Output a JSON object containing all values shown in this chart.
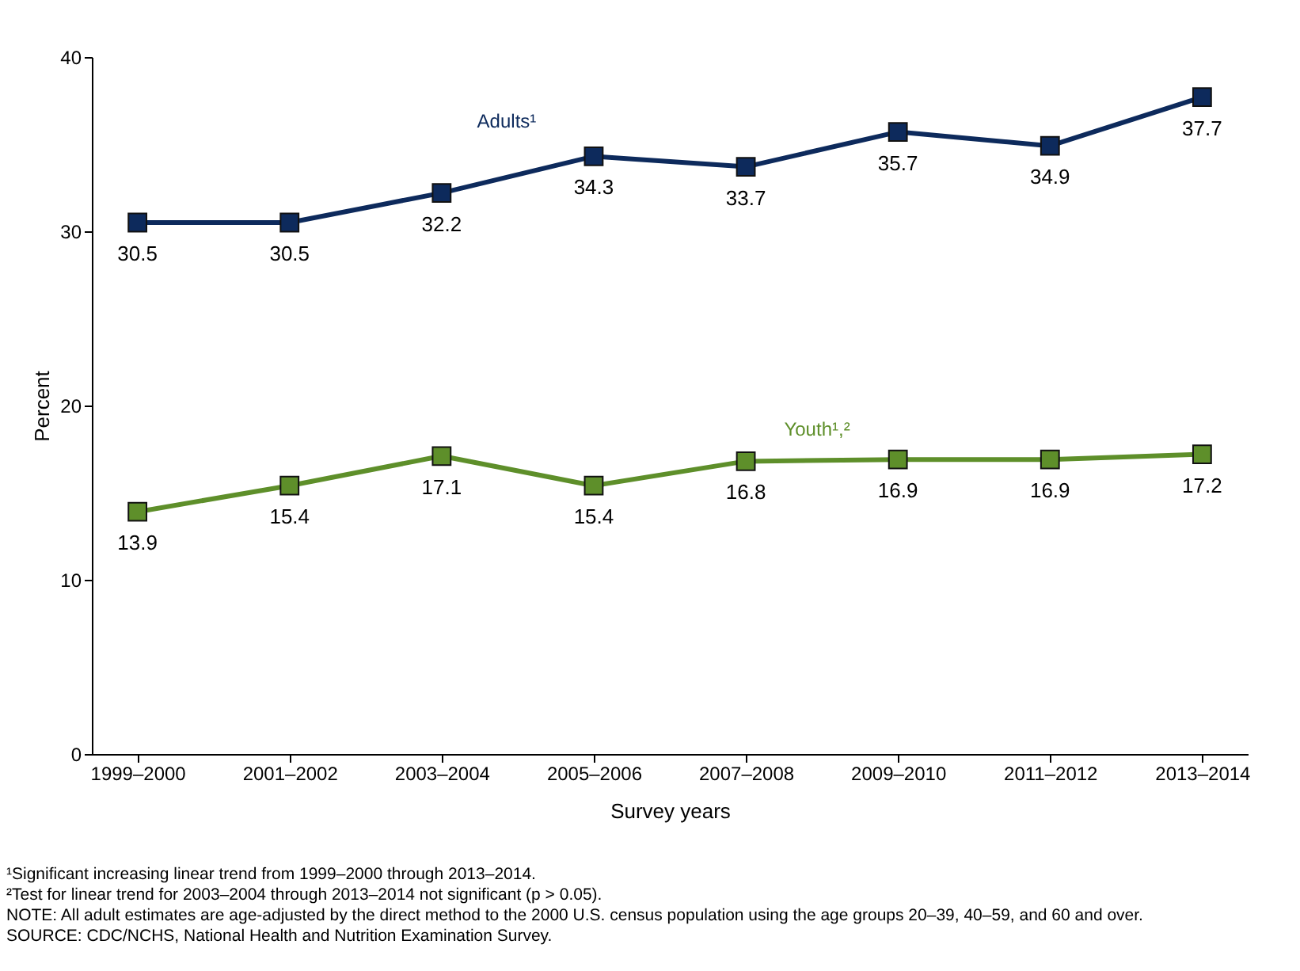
{
  "chart_data": {
    "type": "line",
    "xlabel": "Survey years",
    "ylabel": "Percent",
    "categories": [
      "1999–2000",
      "2001–2002",
      "2003–2004",
      "2005–2006",
      "2007–2008",
      "2009–2010",
      "2011–2012",
      "2013–2014"
    ],
    "series": [
      {
        "name": "Adults¹",
        "color": "#0d2a5c",
        "values": [
          30.5,
          30.5,
          32.2,
          34.3,
          33.7,
          35.7,
          34.9,
          37.7
        ]
      },
      {
        "name": "Youth¹,²",
        "color": "#5e8f2a",
        "values": [
          13.9,
          15.4,
          17.1,
          15.4,
          16.8,
          16.9,
          16.9,
          17.2
        ]
      }
    ],
    "ylim": [
      0,
      40
    ],
    "yticks": [
      0,
      10,
      20,
      30,
      40
    ],
    "marker": "square",
    "line_style": "solid",
    "data_labels": true,
    "annotations": [
      "¹Significant increasing linear trend from 1999–2000 through 2013–2014.",
      "²Test for linear trend for 2003–2004 through 2013–2014 not significant (p > 0.05).",
      "NOTE: All adult estimates are age-adjusted by the direct method to the 2000 U.S. census population using the age groups 20–39, 40–59, and 60 and over.",
      "SOURCE: CDC/NCHS, National Health and Nutrition Examination Survey."
    ]
  }
}
